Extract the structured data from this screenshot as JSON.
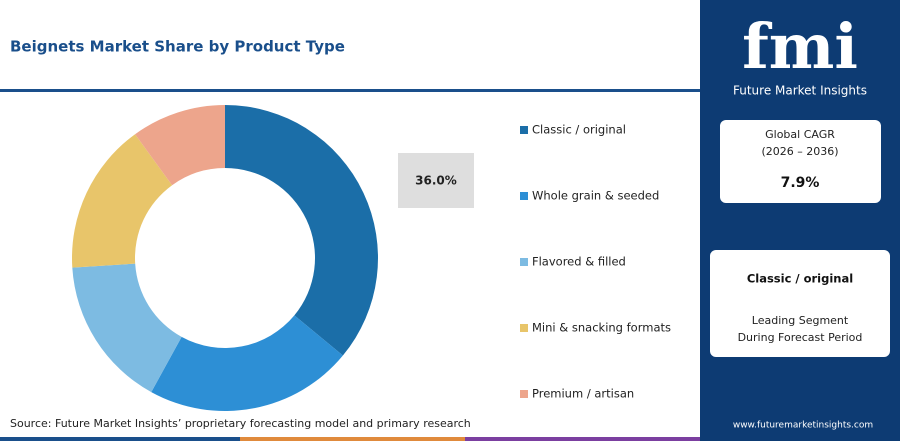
{
  "chart_data": {
    "type": "donut",
    "title": "Beignets Market Share by Product Type",
    "categories": [
      "Classic / original",
      "Whole grain & seeded",
      "Flavored & filled",
      "Mini & snacking formats",
      "Premium / artisan"
    ],
    "values": [
      36,
      22,
      16,
      16,
      10
    ],
    "value_labels": [
      "36.0%",
      null,
      null,
      null,
      null
    ],
    "colors": [
      "#1b6ea8",
      "#2d8fd5",
      "#7dbbe2",
      "#e8c56a",
      "#eda58c"
    ],
    "source": "Source: Future Market Insights’ proprietary forecasting model and primary research"
  },
  "sidebar": {
    "logo": "fmi",
    "brand": "Future Market Insights",
    "cagr": {
      "label": "Global CAGR",
      "period": "(2026 – 2036)",
      "value": "7.9%"
    },
    "leading": {
      "segment": "Classic / original",
      "caption1": "Leading Segment",
      "caption2": "During Forecast Period"
    },
    "url": "www.futuremarketinsights.com"
  }
}
